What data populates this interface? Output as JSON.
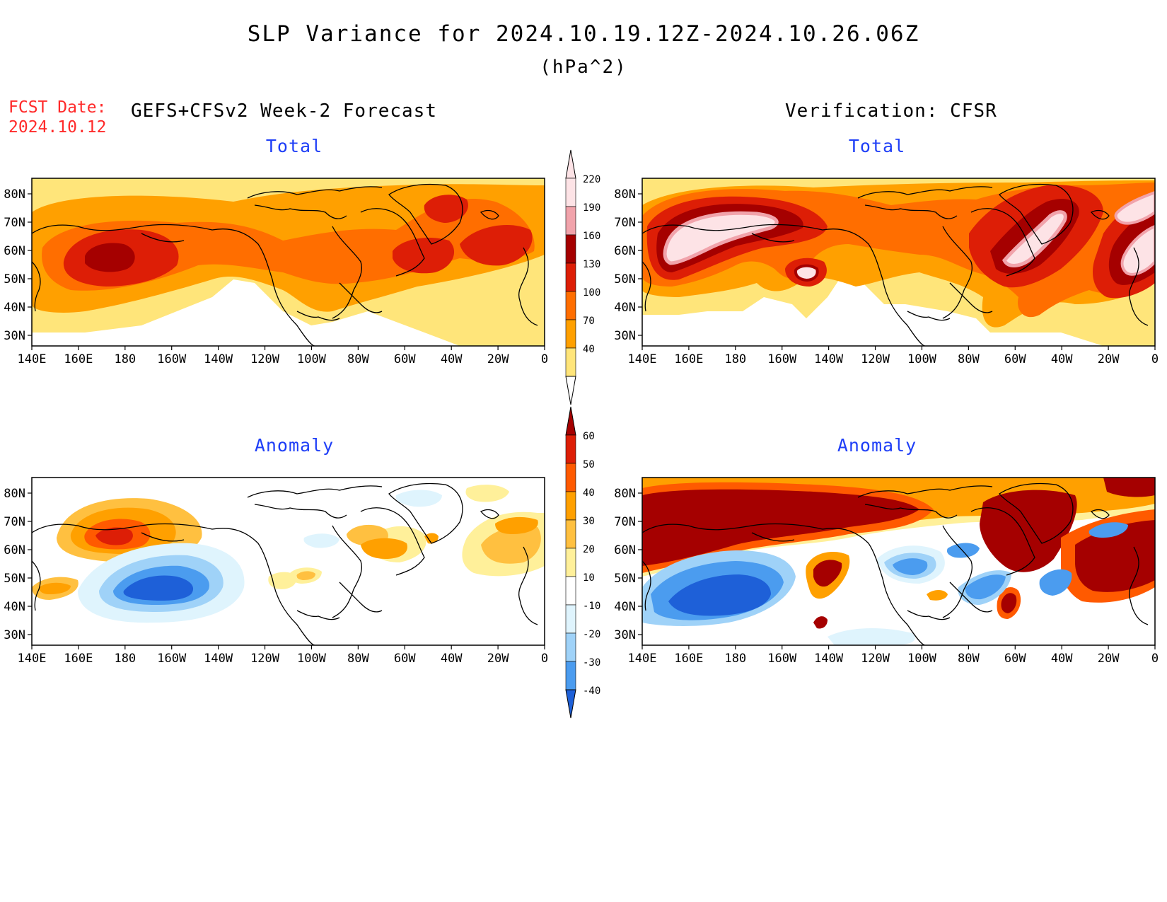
{
  "header": {
    "title": "SLP Variance for 2024.10.19.12Z-2024.10.26.06Z",
    "units": "(hPa^2)",
    "fcst_label": "FCST Date:",
    "fcst_date": "2024.10.12",
    "left_heading": "GEFS+CFSv2 Week-2 Forecast",
    "right_heading": "Verification: CFSR"
  },
  "panels": {
    "forecast_total": {
      "title": "Total"
    },
    "verification_total": {
      "title": "Total"
    },
    "forecast_anomaly": {
      "title": "Anomaly"
    },
    "verification_anomaly": {
      "title": "Anomaly"
    }
  },
  "axes": {
    "lon_labels": [
      "140E",
      "160E",
      "180",
      "160W",
      "140W",
      "120W",
      "100W",
      "80W",
      "60W",
      "40W",
      "20W",
      "0"
    ],
    "lat_labels": [
      "80N",
      "70N",
      "60N",
      "50N",
      "40N",
      "30N"
    ]
  },
  "colorbars": {
    "total": {
      "levels": [
        "220",
        "190",
        "160",
        "130",
        "100",
        "70",
        "40"
      ],
      "colors": [
        "#fde3e6",
        "#f1a3ab",
        "#a50000",
        "#dd1e06",
        "#ff6e00",
        "#ffa000",
        "#ffe57a"
      ]
    },
    "anomaly": {
      "levels": [
        "60",
        "50",
        "40",
        "30",
        "20",
        "10",
        "-10",
        "-20",
        "-30",
        "-40"
      ],
      "colors": [
        "#a50000",
        "#dd1e06",
        "#ff5a00",
        "#ffa000",
        "#ffc040",
        "#fff09a",
        "#ffffff",
        "#dff4fd",
        "#9fd2f8",
        "#4b9cef",
        "#1e60d8"
      ]
    }
  }
}
